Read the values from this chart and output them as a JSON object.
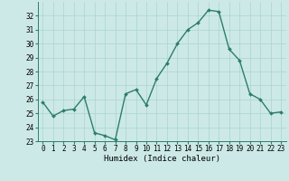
{
  "x": [
    0,
    1,
    2,
    3,
    4,
    5,
    6,
    7,
    8,
    9,
    10,
    11,
    12,
    13,
    14,
    15,
    16,
    17,
    18,
    19,
    20,
    21,
    22,
    23
  ],
  "y": [
    25.8,
    24.8,
    25.2,
    25.3,
    26.2,
    23.6,
    23.4,
    23.1,
    26.4,
    26.7,
    25.6,
    27.5,
    28.6,
    30.0,
    31.0,
    31.5,
    32.4,
    32.3,
    29.6,
    28.8,
    26.4,
    26.0,
    25.0,
    25.1
  ],
  "line_color": "#2d7d6e",
  "marker": "D",
  "marker_size": 2.0,
  "bg_color": "#cce9e7",
  "grid_color": "#aad4d0",
  "xlabel": "Humidex (Indice chaleur)",
  "ylim": [
    23,
    33
  ],
  "xlim": [
    -0.5,
    23.5
  ],
  "yticks": [
    23,
    24,
    25,
    26,
    27,
    28,
    29,
    30,
    31,
    32
  ],
  "xticks": [
    0,
    1,
    2,
    3,
    4,
    5,
    6,
    7,
    8,
    9,
    10,
    11,
    12,
    13,
    14,
    15,
    16,
    17,
    18,
    19,
    20,
    21,
    22,
    23
  ],
  "tick_fontsize": 5.5,
  "xlabel_fontsize": 6.5,
  "line_width": 1.0
}
